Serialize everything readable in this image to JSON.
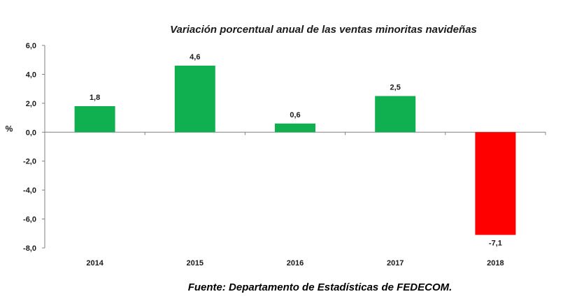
{
  "chart_data": {
    "type": "bar",
    "title": "Variación porcentual anual  de las ventas minoritas navideñas",
    "ylabel": "%",
    "xlabel": "",
    "categories": [
      "2014",
      "2015",
      "2016",
      "2017",
      "2018"
    ],
    "values": [
      1.8,
      4.6,
      0.6,
      2.5,
      -7.1
    ],
    "value_labels": [
      "1,8",
      "4,6",
      "0,6",
      "2,5",
      "-7,1"
    ],
    "ylim": [
      -8,
      6
    ],
    "yticks": [
      6,
      4,
      2,
      0,
      -2,
      -4,
      -6,
      -8
    ],
    "ytick_labels": [
      "6,0",
      "4,0",
      "2,0",
      "0,0",
      "-2,0",
      "-4,0",
      "-6,0",
      "-8,0"
    ],
    "grid": false,
    "legend": "none",
    "colors": {
      "positive": "#10b050",
      "negative": "#ff0000",
      "axis": "#808080"
    }
  },
  "source": "Fuente: Departamento de Estadísticas de FEDECOM."
}
